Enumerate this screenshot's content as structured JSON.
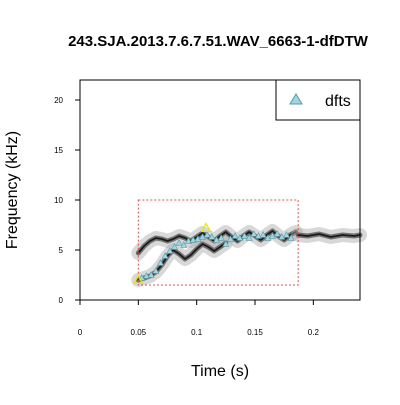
{
  "chart_data": {
    "type": "scatter",
    "title": "243.SJA.2013.7.6.7.51.WAV_6663-1-dfDTW",
    "xlabel": "Time (s)",
    "ylabel": "Frequency (kHz)",
    "xlim": [
      0,
      0.24
    ],
    "ylim": [
      0,
      22
    ],
    "x_ticks": [
      0,
      0.05,
      0.1,
      0.15,
      0.2
    ],
    "x_tick_labels": [
      "0",
      "0.05",
      "0.1",
      "0.15",
      "0.2"
    ],
    "y_ticks": [
      0,
      5,
      10,
      15,
      20
    ],
    "y_tick_labels": [
      "0",
      "5",
      "10",
      "15",
      "20"
    ],
    "legend": {
      "position": "top-right",
      "entries": [
        {
          "label": "dfts",
          "marker": "triangle",
          "fill": "#9ed6e0",
          "stroke": "#5a9aa8"
        }
      ]
    },
    "selection_box": {
      "x": [
        0.05,
        0.187
      ],
      "y": [
        1.5,
        10
      ],
      "color": "#e05050",
      "style": "dotted"
    },
    "highlight_points": [
      {
        "x": 0.05,
        "y": 2.0,
        "color": "#e8e800"
      },
      {
        "x": 0.108,
        "y": 7.2,
        "color": "#e8e800"
      }
    ],
    "series": [
      {
        "name": "dfts",
        "points": [
          {
            "x": 0.053,
            "y": 2.2
          },
          {
            "x": 0.057,
            "y": 2.4
          },
          {
            "x": 0.061,
            "y": 2.5
          },
          {
            "x": 0.065,
            "y": 2.9
          },
          {
            "x": 0.069,
            "y": 3.7
          },
          {
            "x": 0.073,
            "y": 4.4
          },
          {
            "x": 0.077,
            "y": 4.9
          },
          {
            "x": 0.081,
            "y": 5.3
          },
          {
            "x": 0.085,
            "y": 5.7
          },
          {
            "x": 0.089,
            "y": 5.5
          },
          {
            "x": 0.093,
            "y": 5.9
          },
          {
            "x": 0.097,
            "y": 6.0
          },
          {
            "x": 0.101,
            "y": 6.1
          },
          {
            "x": 0.105,
            "y": 6.3
          },
          {
            "x": 0.109,
            "y": 6.5
          },
          {
            "x": 0.113,
            "y": 6.3
          },
          {
            "x": 0.117,
            "y": 6.0
          },
          {
            "x": 0.121,
            "y": 6.2
          },
          {
            "x": 0.125,
            "y": 5.6
          },
          {
            "x": 0.129,
            "y": 6.1
          },
          {
            "x": 0.133,
            "y": 6.4
          },
          {
            "x": 0.137,
            "y": 6.2
          },
          {
            "x": 0.141,
            "y": 6.4
          },
          {
            "x": 0.145,
            "y": 6.2
          },
          {
            "x": 0.149,
            "y": 6.6
          },
          {
            "x": 0.153,
            "y": 6.4
          },
          {
            "x": 0.157,
            "y": 6.5
          },
          {
            "x": 0.161,
            "y": 6.2
          },
          {
            "x": 0.165,
            "y": 6.4
          },
          {
            "x": 0.169,
            "y": 6.6
          },
          {
            "x": 0.173,
            "y": 6.3
          },
          {
            "x": 0.177,
            "y": 6.5
          },
          {
            "x": 0.181,
            "y": 6.2
          }
        ]
      }
    ],
    "spectrogram_traces": [
      {
        "name": "upper-harmonic",
        "points": [
          [
            0.05,
            4.7
          ],
          [
            0.055,
            5.4
          ],
          [
            0.06,
            5.9
          ],
          [
            0.065,
            6.2
          ],
          [
            0.07,
            6.1
          ],
          [
            0.075,
            5.9
          ],
          [
            0.08,
            6.1
          ],
          [
            0.085,
            6.4
          ],
          [
            0.09,
            6.2
          ],
          [
            0.095,
            5.9
          ],
          [
            0.1,
            6.3
          ],
          [
            0.105,
            6.7
          ],
          [
            0.11,
            6.3
          ],
          [
            0.115,
            5.9
          ],
          [
            0.12,
            6.4
          ],
          [
            0.125,
            6.8
          ],
          [
            0.13,
            6.3
          ],
          [
            0.135,
            5.9
          ],
          [
            0.14,
            6.4
          ],
          [
            0.145,
            6.8
          ],
          [
            0.15,
            6.4
          ],
          [
            0.155,
            6.0
          ],
          [
            0.16,
            6.5
          ],
          [
            0.165,
            6.9
          ],
          [
            0.17,
            6.4
          ],
          [
            0.175,
            6.0
          ],
          [
            0.18,
            6.5
          ],
          [
            0.185,
            6.8
          ]
        ]
      },
      {
        "name": "lower-sweep",
        "points": [
          [
            0.05,
            2.0
          ],
          [
            0.055,
            2.2
          ],
          [
            0.06,
            2.4
          ],
          [
            0.065,
            2.8
          ],
          [
            0.07,
            3.5
          ],
          [
            0.075,
            4.4
          ],
          [
            0.08,
            5.0
          ],
          [
            0.085,
            4.6
          ],
          [
            0.09,
            4.1
          ],
          [
            0.095,
            4.5
          ],
          [
            0.1,
            5.1
          ],
          [
            0.105,
            5.6
          ],
          [
            0.11,
            5.3
          ],
          [
            0.115,
            4.9
          ],
          [
            0.12,
            5.3
          ],
          [
            0.125,
            5.7
          ]
        ]
      },
      {
        "name": "tail",
        "points": [
          [
            0.187,
            6.5
          ],
          [
            0.195,
            6.4
          ],
          [
            0.205,
            6.6
          ],
          [
            0.215,
            6.3
          ],
          [
            0.225,
            6.5
          ],
          [
            0.235,
            6.4
          ],
          [
            0.24,
            6.5
          ]
        ]
      }
    ]
  }
}
